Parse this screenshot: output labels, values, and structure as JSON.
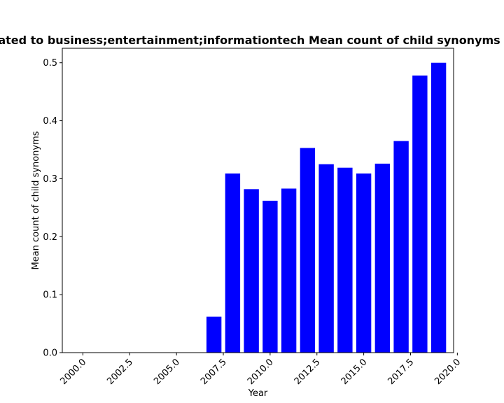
{
  "chart_data": {
    "type": "bar",
    "title": "ated to business;entertainment;informationtech Mean count of child synonyms",
    "xlabel": "Year",
    "ylabel": "Mean count of child synonyms",
    "x": [
      2000,
      2001,
      2002,
      2003,
      2004,
      2005,
      2006,
      2007,
      2008,
      2009,
      2010,
      2011,
      2012,
      2013,
      2014,
      2015,
      2016,
      2017,
      2018,
      2019
    ],
    "values": [
      0,
      0,
      0,
      0,
      0,
      0,
      0,
      0.062,
      0.309,
      0.282,
      0.262,
      0.283,
      0.353,
      0.325,
      0.319,
      0.309,
      0.326,
      0.365,
      0.478,
      0.5
    ],
    "xlim": [
      1998.9,
      2019.8
    ],
    "ylim": [
      0,
      0.525
    ],
    "xticks": [
      2000.0,
      2002.5,
      2005.0,
      2007.5,
      2010.0,
      2012.5,
      2015.0,
      2017.5,
      2020.0
    ],
    "xtick_labels": [
      "2000.0",
      "2002.5",
      "2005.0",
      "2007.5",
      "2010.0",
      "2012.5",
      "2015.0",
      "2017.5",
      "2020.0"
    ],
    "yticks": [
      0.0,
      0.1,
      0.2,
      0.3,
      0.4,
      0.5
    ],
    "ytick_labels": [
      "0.0",
      "0.1",
      "0.2",
      "0.3",
      "0.4",
      "0.5"
    ],
    "bar_color": "#0000ff",
    "grid": false,
    "legend": false
  }
}
